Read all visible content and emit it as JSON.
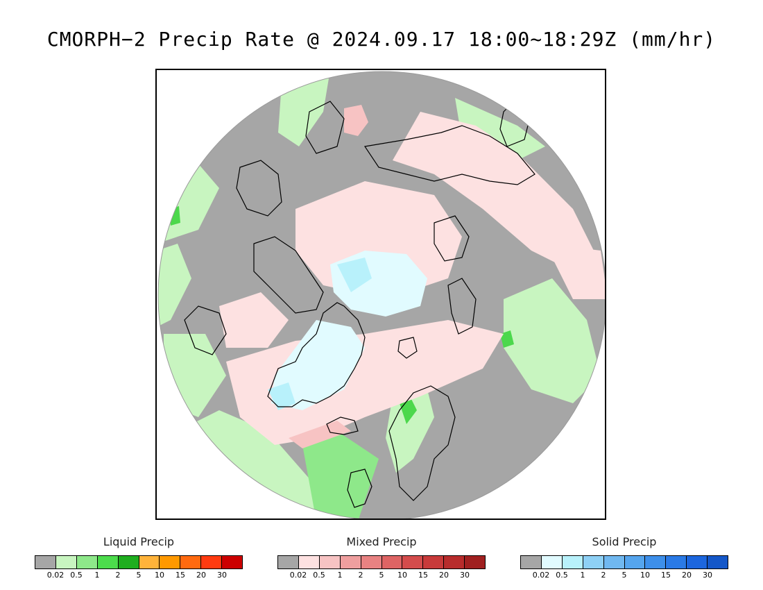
{
  "title": "CMORPH−2 Precip Rate @ 2024.09.17 18:00~18:29Z (mm/hr)",
  "map": {
    "projection": "north-polar-stereographic",
    "colors": {
      "no_precip": "#a6a6a6",
      "liquid_light": "#c8f5c0",
      "liquid_med": "#8ee88a",
      "liquid_strong": "#4cd84c",
      "mixed_light": "#fde1e1",
      "mixed_med": "#f7c3c3",
      "mixed_strong": "#ef9f9f",
      "solid_light": "#e1fbff",
      "solid_med": "#b8f1fb",
      "coastline": "#000000",
      "outside": "#ffffff"
    }
  },
  "legends": [
    {
      "title": "Liquid Precip",
      "colors": [
        "#a6a6a6",
        "#c8f5c0",
        "#8ee88a",
        "#4cdc4c",
        "#1fae1f",
        "#ffb33a",
        "#ff9900",
        "#ff6a10",
        "#ff3b10",
        "#cc0000"
      ],
      "ticks": [
        "0.02",
        "0.5",
        "1",
        "2",
        "5",
        "10",
        "15",
        "20",
        "30"
      ]
    },
    {
      "title": "Mixed Precip",
      "colors": [
        "#a6a6a6",
        "#fde1e1",
        "#f7c3c3",
        "#ef9f9f",
        "#e88282",
        "#de6464",
        "#d44c4c",
        "#c83a3a",
        "#b82c2c",
        "#a02020"
      ],
      "ticks": [
        "0.02",
        "0.5",
        "1",
        "2",
        "5",
        "10",
        "15",
        "20",
        "30"
      ]
    },
    {
      "title": "Solid Precip",
      "colors": [
        "#a6a6a6",
        "#e1fbff",
        "#b8f1fb",
        "#8ed0f5",
        "#70b8f0",
        "#55a5ee",
        "#3d8fea",
        "#2a7ae6",
        "#1c66de",
        "#1457c8"
      ],
      "ticks": [
        "0.02",
        "0.5",
        "1",
        "2",
        "5",
        "10",
        "15",
        "20",
        "30"
      ]
    }
  ]
}
